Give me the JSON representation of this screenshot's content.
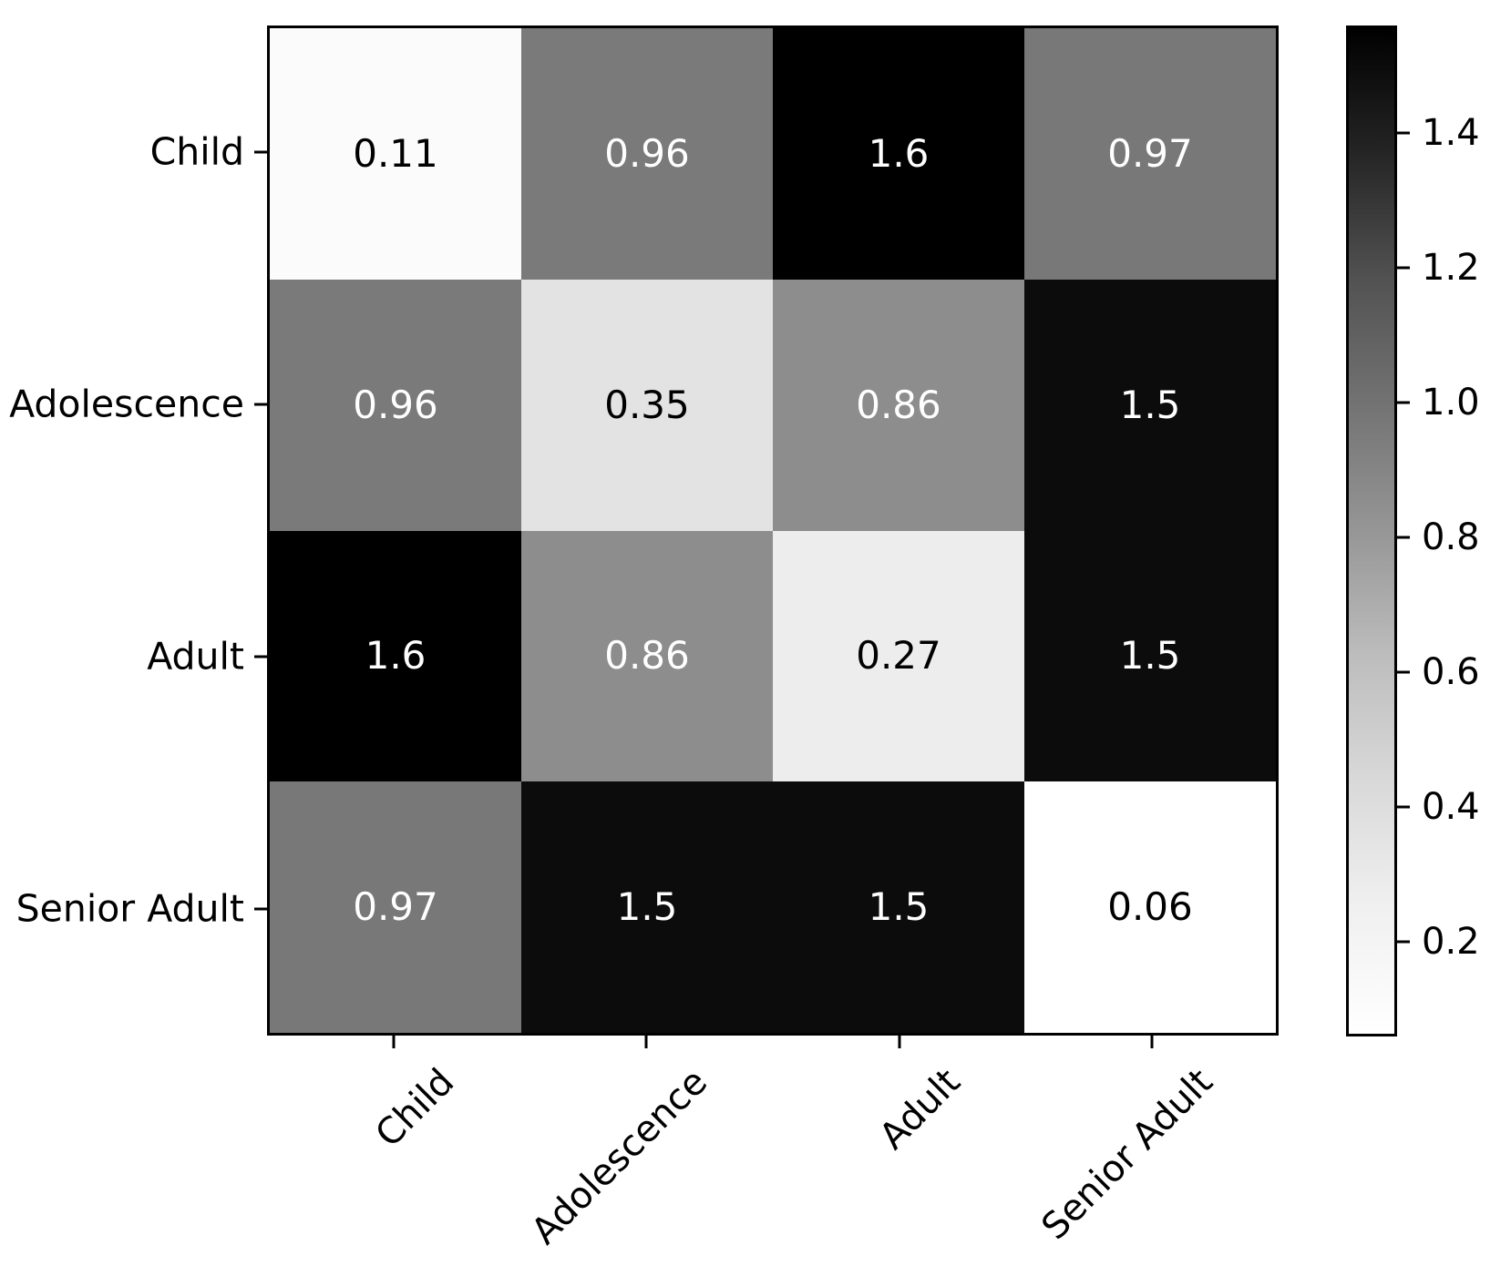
{
  "figure": {
    "background": "#ffffff"
  },
  "chart_data": {
    "type": "heatmap",
    "title": "",
    "xlabel": "",
    "ylabel": "",
    "colormap": "Greys",
    "grid": false,
    "legend_position": "colorbar-right",
    "categories": [
      "Child",
      "Adolescence",
      "Adult",
      "Senior Adult"
    ],
    "x_tick_labels": [
      "Child",
      "Adolescence",
      "Adult",
      "Senior Adult"
    ],
    "y_tick_labels": [
      "Child",
      "Adolescence",
      "Adult",
      "Senior Adult"
    ],
    "matrix": [
      [
        0.11,
        0.96,
        1.6,
        0.97
      ],
      [
        0.96,
        0.35,
        0.86,
        1.5
      ],
      [
        1.6,
        0.86,
        0.27,
        1.5
      ],
      [
        0.97,
        1.5,
        1.5,
        0.06
      ]
    ],
    "display_values": [
      [
        "0.11",
        "0.96",
        "1.6",
        "0.97"
      ],
      [
        "0.96",
        "0.35",
        "0.86",
        "1.5"
      ],
      [
        "1.6",
        "0.86",
        "0.27",
        "1.5"
      ],
      [
        "0.97",
        "1.5",
        "1.5",
        "0.06"
      ]
    ],
    "cell_colors": [
      [
        "#fbfbfb",
        "#7a7a7a",
        "#000000",
        "#787878"
      ],
      [
        "#7a7a7a",
        "#e3e3e3",
        "#8d8d8d",
        "#0c0c0c"
      ],
      [
        "#000000",
        "#8d8d8d",
        "#ededed",
        "#0c0c0c"
      ],
      [
        "#787878",
        "#0c0c0c",
        "#0c0c0c",
        "#ffffff"
      ]
    ],
    "cell_text_colors": [
      [
        "#000000",
        "#ffffff",
        "#ffffff",
        "#ffffff"
      ],
      [
        "#ffffff",
        "#000000",
        "#ffffff",
        "#ffffff"
      ],
      [
        "#ffffff",
        "#ffffff",
        "#000000",
        "#ffffff"
      ],
      [
        "#ffffff",
        "#ffffff",
        "#ffffff",
        "#000000"
      ]
    ],
    "colorbar": {
      "tick_labels": [
        "1.4",
        "1.2",
        "1.0",
        "0.8",
        "0.6",
        "0.4",
        "0.2"
      ],
      "tick_values": [
        1.4,
        1.2,
        1.0,
        0.8,
        0.6,
        0.4,
        0.2
      ],
      "vmin": 0.06,
      "vmax": 1.56,
      "gradient_stops": [
        {
          "pos": 0.0,
          "color": "#000000"
        },
        {
          "pos": 0.125,
          "color": "#252525"
        },
        {
          "pos": 0.25,
          "color": "#525252"
        },
        {
          "pos": 0.375,
          "color": "#737373"
        },
        {
          "pos": 0.5,
          "color": "#969696"
        },
        {
          "pos": 0.625,
          "color": "#bdbdbd"
        },
        {
          "pos": 0.75,
          "color": "#d9d9d9"
        },
        {
          "pos": 0.875,
          "color": "#f0f0f0"
        },
        {
          "pos": 1.0,
          "color": "#ffffff"
        }
      ]
    }
  }
}
